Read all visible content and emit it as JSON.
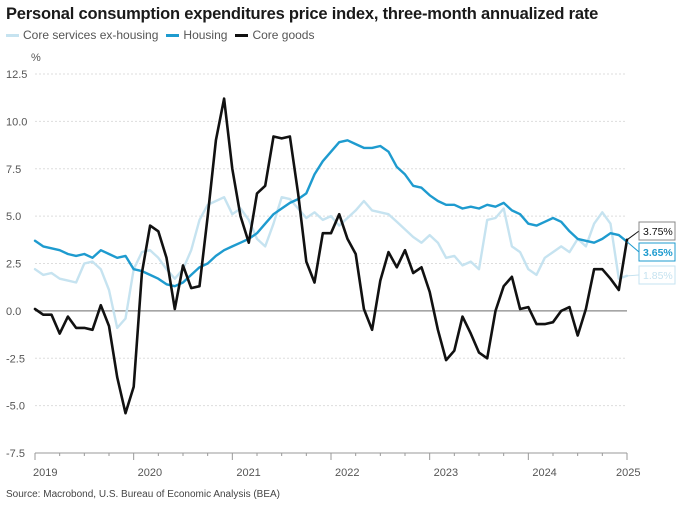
{
  "chart_data": {
    "type": "line",
    "title": "Personal consumption expenditures price index, three-month annualized rate",
    "ylabel": "%",
    "xlabel": "",
    "ylim": [
      -7.5,
      12.5
    ],
    "xlim": [
      2019.0,
      2025.0
    ],
    "yticks": [
      12.5,
      10.0,
      7.5,
      5.0,
      2.5,
      0.0,
      -2.5,
      -5.0,
      -7.5
    ],
    "ytick_labels": [
      "12.5",
      "10.0",
      "7.5",
      "5.0",
      "2.5",
      "0.0",
      "-2.5",
      "-5.0",
      "-7.5"
    ],
    "xticks": [
      2019,
      2020,
      2021,
      2022,
      2023,
      2024,
      2025
    ],
    "xtick_labels": [
      "2019",
      "2020",
      "2021",
      "2022",
      "2023",
      "2024",
      "2025"
    ],
    "legend_position": "top-left",
    "series": [
      {
        "name": "Core services ex-housing",
        "color": "#c6e3f0",
        "end_label": "1.85%",
        "x": [
          2019.0,
          2019.083,
          2019.167,
          2019.25,
          2019.333,
          2019.417,
          2019.5,
          2019.583,
          2019.667,
          2019.75,
          2019.833,
          2019.917,
          2020.0,
          2020.083,
          2020.167,
          2020.25,
          2020.333,
          2020.417,
          2020.5,
          2020.583,
          2020.667,
          2020.75,
          2020.833,
          2020.917,
          2021.0,
          2021.083,
          2021.167,
          2021.25,
          2021.333,
          2021.417,
          2021.5,
          2021.583,
          2021.667,
          2021.75,
          2021.833,
          2021.917,
          2022.0,
          2022.083,
          2022.167,
          2022.25,
          2022.333,
          2022.417,
          2022.5,
          2022.583,
          2022.667,
          2022.75,
          2022.833,
          2022.917,
          2023.0,
          2023.083,
          2023.167,
          2023.25,
          2023.333,
          2023.417,
          2023.5,
          2023.583,
          2023.667,
          2023.75,
          2023.833,
          2023.917,
          2024.0,
          2024.083,
          2024.167,
          2024.25,
          2024.333,
          2024.417,
          2024.5,
          2024.583,
          2024.667,
          2024.75,
          2024.833,
          2024.917,
          2025.0
        ],
        "values": [
          2.2,
          1.9,
          2.0,
          1.7,
          1.6,
          1.5,
          2.5,
          2.6,
          2.2,
          1.1,
          -0.9,
          -0.4,
          2.2,
          3.1,
          3.2,
          2.8,
          2.2,
          1.7,
          2.2,
          3.2,
          4.8,
          5.6,
          5.8,
          6.0,
          5.1,
          5.4,
          4.8,
          3.8,
          3.4,
          4.6,
          6.0,
          5.9,
          5.4,
          4.9,
          5.2,
          4.8,
          5.0,
          4.5,
          4.9,
          5.3,
          5.8,
          5.3,
          5.2,
          5.1,
          4.7,
          4.3,
          3.9,
          3.6,
          4.0,
          3.6,
          2.8,
          2.9,
          2.4,
          2.6,
          2.2,
          4.8,
          4.9,
          5.4,
          3.4,
          3.1,
          2.2,
          1.9,
          2.8,
          3.1,
          3.4,
          3.1,
          3.8,
          3.4,
          4.6,
          5.2,
          4.6,
          1.7,
          1.85
        ]
      },
      {
        "name": "Housing",
        "color": "#1e9bcf",
        "end_label": "3.65%",
        "x": [
          2019.0,
          2019.083,
          2019.167,
          2019.25,
          2019.333,
          2019.417,
          2019.5,
          2019.583,
          2019.667,
          2019.75,
          2019.833,
          2019.917,
          2020.0,
          2020.083,
          2020.167,
          2020.25,
          2020.333,
          2020.417,
          2020.5,
          2020.583,
          2020.667,
          2020.75,
          2020.833,
          2020.917,
          2021.0,
          2021.083,
          2021.167,
          2021.25,
          2021.333,
          2021.417,
          2021.5,
          2021.583,
          2021.667,
          2021.75,
          2021.833,
          2021.917,
          2022.0,
          2022.083,
          2022.167,
          2022.25,
          2022.333,
          2022.417,
          2022.5,
          2022.583,
          2022.667,
          2022.75,
          2022.833,
          2022.917,
          2023.0,
          2023.083,
          2023.167,
          2023.25,
          2023.333,
          2023.417,
          2023.5,
          2023.583,
          2023.667,
          2023.75,
          2023.833,
          2023.917,
          2024.0,
          2024.083,
          2024.167,
          2024.25,
          2024.333,
          2024.417,
          2024.5,
          2024.583,
          2024.667,
          2024.75,
          2024.833,
          2024.917,
          2025.0
        ],
        "values": [
          3.7,
          3.4,
          3.3,
          3.2,
          3.0,
          2.9,
          3.0,
          2.8,
          3.2,
          3.0,
          2.8,
          2.9,
          2.2,
          2.1,
          1.9,
          1.7,
          1.4,
          1.3,
          1.5,
          1.9,
          2.3,
          2.5,
          2.9,
          3.2,
          3.4,
          3.6,
          3.8,
          4.1,
          4.6,
          5.1,
          5.4,
          5.7,
          5.9,
          6.2,
          7.2,
          7.9,
          8.4,
          8.9,
          9.0,
          8.8,
          8.6,
          8.6,
          8.7,
          8.4,
          7.6,
          7.2,
          6.6,
          6.5,
          6.1,
          5.8,
          5.6,
          5.6,
          5.4,
          5.5,
          5.4,
          5.6,
          5.5,
          5.7,
          5.3,
          5.1,
          4.6,
          4.5,
          4.7,
          4.9,
          4.7,
          4.2,
          3.8,
          3.7,
          3.6,
          3.8,
          4.1,
          4.0,
          3.65
        ]
      },
      {
        "name": "Core goods",
        "color": "#111111",
        "end_label": "3.75%",
        "x": [
          2019.0,
          2019.083,
          2019.167,
          2019.25,
          2019.333,
          2019.417,
          2019.5,
          2019.583,
          2019.667,
          2019.75,
          2019.833,
          2019.917,
          2020.0,
          2020.083,
          2020.167,
          2020.25,
          2020.333,
          2020.417,
          2020.5,
          2020.583,
          2020.667,
          2020.75,
          2020.833,
          2020.917,
          2021.0,
          2021.083,
          2021.167,
          2021.25,
          2021.333,
          2021.417,
          2021.5,
          2021.583,
          2021.667,
          2021.75,
          2021.833,
          2021.917,
          2022.0,
          2022.083,
          2022.167,
          2022.25,
          2022.333,
          2022.417,
          2022.5,
          2022.583,
          2022.667,
          2022.75,
          2022.833,
          2022.917,
          2023.0,
          2023.083,
          2023.167,
          2023.25,
          2023.333,
          2023.417,
          2023.5,
          2023.583,
          2023.667,
          2023.75,
          2023.833,
          2023.917,
          2024.0,
          2024.083,
          2024.167,
          2024.25,
          2024.333,
          2024.417,
          2024.5,
          2024.583,
          2024.667,
          2024.75,
          2024.833,
          2024.917,
          2025.0
        ],
        "values": [
          0.1,
          -0.2,
          -0.2,
          -1.2,
          -0.3,
          -0.9,
          -0.9,
          -1.0,
          0.3,
          -0.8,
          -3.5,
          -5.4,
          -4.0,
          2.0,
          4.5,
          4.2,
          2.8,
          0.1,
          2.4,
          1.2,
          1.3,
          5.0,
          9.0,
          11.2,
          7.5,
          5.0,
          3.6,
          6.2,
          6.6,
          9.2,
          9.1,
          9.2,
          6.2,
          2.6,
          1.5,
          4.1,
          4.1,
          5.1,
          3.8,
          3.0,
          0.1,
          -1.0,
          1.6,
          3.1,
          2.3,
          3.2,
          2.0,
          2.3,
          1.0,
          -1.0,
          -2.6,
          -2.1,
          -0.3,
          -1.2,
          -2.2,
          -2.5,
          0.0,
          1.3,
          1.8,
          0.1,
          0.2,
          -0.7,
          -0.7,
          -0.6,
          0.0,
          0.2,
          -1.3,
          0.1,
          2.2,
          2.2,
          1.7,
          1.1,
          3.75
        ]
      }
    ]
  },
  "source": "Source: Macrobond, U.S. Bureau of Economic Analysis (BEA)"
}
